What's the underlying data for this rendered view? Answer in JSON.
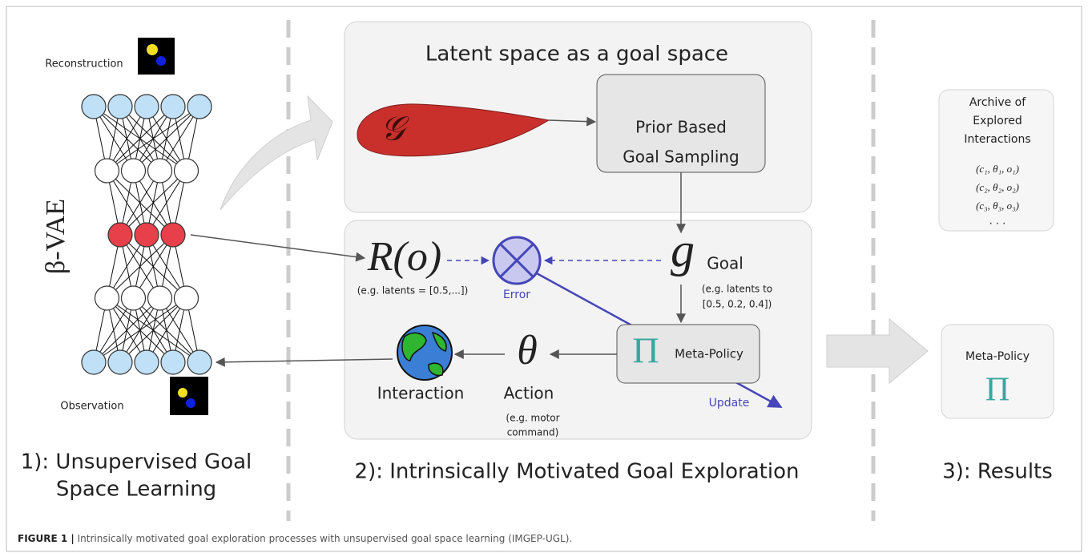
{
  "left": {
    "reconstruction": "Reconstruction",
    "observation": "Observation",
    "model": "β-VAE",
    "heading": [
      "1): Unsupervised Goal",
      "Space Learning"
    ]
  },
  "middle": {
    "title": "Latent space as a goal space",
    "goal_space_symbol": "𝒢",
    "sampler": [
      "Prior Based",
      "Goal Sampling"
    ],
    "reward": "R(o)",
    "reward_note": "(e.g.  latents = [0.5,...])",
    "error": "Error",
    "goal_symbol": "g",
    "goal": "Goal",
    "goal_note": [
      "(e.g.  latents to",
      "[0.5, 0.2, 0.4])"
    ],
    "policy_symbol": "Π",
    "policy": "Meta-Policy",
    "update": "Update",
    "action_symbol": "θ",
    "action": "Action",
    "action_note": [
      "(e.g.  motor",
      "command)"
    ],
    "interaction": "Interaction",
    "heading": "2): Intrinsically Motivated Goal Exploration"
  },
  "right": {
    "archive": [
      "Archive of",
      "Explored",
      "Interactions"
    ],
    "archive_items": [
      "(c₁, θ₁, o₁)",
      "(c₂, θ₂, o₂)",
      "(c₃, θ₃, o₃)",
      ". . ."
    ],
    "policy": "Meta-Policy",
    "policy_symbol": "Π",
    "heading": "3): Results"
  },
  "caption": {
    "label": "FIGURE 1 |",
    "text": " Intrinsically motivated goal exploration processes with unsupervised goal space learning (IMGEP-UGL)."
  }
}
